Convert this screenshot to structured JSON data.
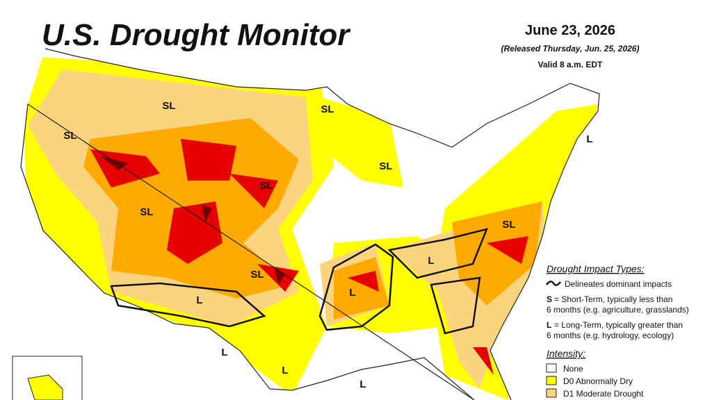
{
  "header": {
    "title": "U.S. Drought Monitor",
    "date": "June 23, 2026",
    "released": "(Released Thursday, Jun. 25, 2026)",
    "valid": "Valid 8 a.m. EDT"
  },
  "impact_types": {
    "title": "Drought Impact Types:",
    "line_label": "Delineates dominant impacts",
    "short": {
      "code": "S",
      "lines": [
        "= Short-Term, typically less than",
        "6 months (e.g. agriculture, grasslands)"
      ]
    },
    "long": {
      "code": "L",
      "lines": [
        "= Long-Term, typically greater than",
        "6 months (e.g. hydrology, ecology)"
      ]
    }
  },
  "intensity": {
    "title": "Intensity:",
    "items": [
      {
        "label": "None",
        "color": "#ffffff"
      },
      {
        "label": "D0 Abnormally Dry",
        "color": "#ffff00"
      },
      {
        "label": "D1 Moderate Drought",
        "color": "#fcd37f"
      }
    ]
  },
  "map_labels": [
    "SL",
    "SL",
    "SL",
    "SL",
    "SL",
    "SL",
    "SL",
    "SL",
    "L",
    "L",
    "L",
    "L",
    "L",
    "L",
    "L"
  ]
}
